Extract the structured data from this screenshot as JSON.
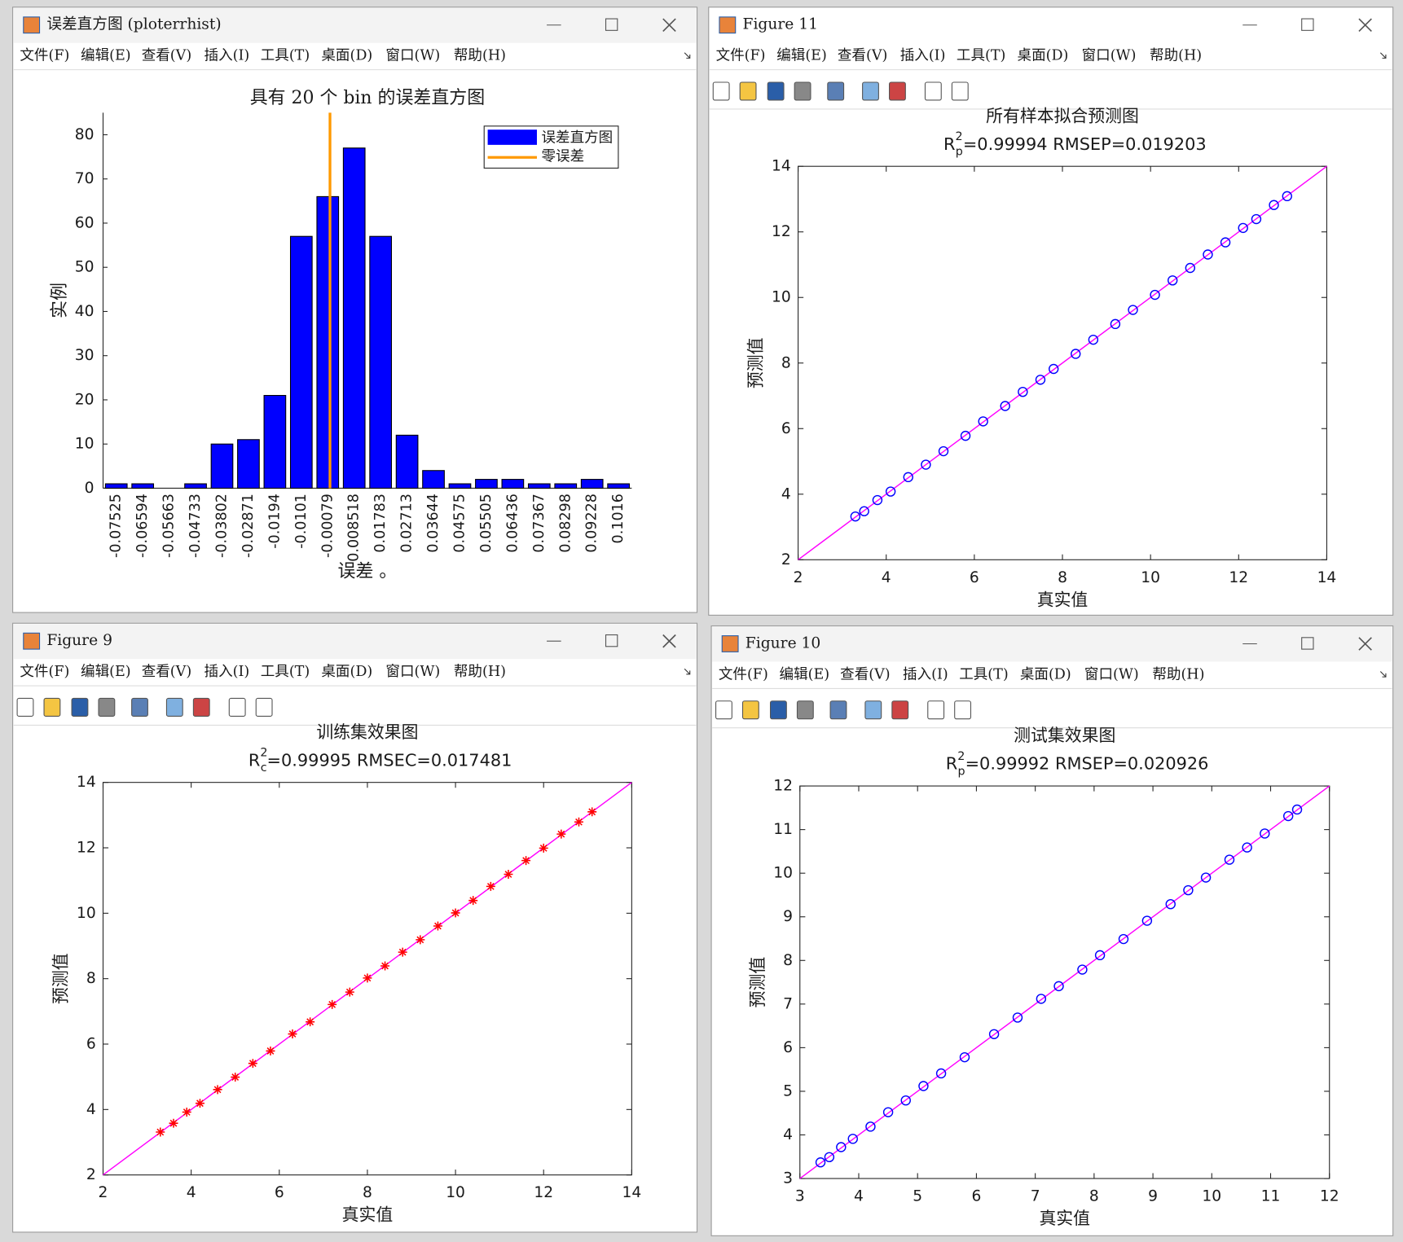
{
  "windows": [
    {
      "title": "误差直方图 (ploterrhist)"
    },
    {
      "title": "Figure 11"
    },
    {
      "title": "Figure 9"
    },
    {
      "title": "Figure 10"
    }
  ],
  "menu": [
    "文件(F)",
    "编辑(E)",
    "查看(V)",
    "插入(I)",
    "工具(T)",
    "桌面(D)",
    "窗口(W)",
    "帮助(H)"
  ],
  "chart_data": [
    {
      "type": "bar",
      "title": "具有 20 个 bin 的误差直方图",
      "xlabel": "误差 。",
      "ylabel": "实例",
      "categories": [
        "-0.07525",
        "-0.06594",
        "-0.05663",
        "-0.04733",
        "-0.03802",
        "-0.02871",
        "-0.0194",
        "-0.0101",
        "-0.00079",
        "0.008518",
        "0.01783",
        "0.02713",
        "0.03644",
        "0.04575",
        "0.05505",
        "0.06436",
        "0.07367",
        "0.08298",
        "0.09228",
        "0.1016"
      ],
      "series": [
        {
          "name": "误差直方图",
          "color": "#0000ff",
          "values": [
            1,
            1,
            0,
            1,
            10,
            11,
            21,
            57,
            66,
            77,
            57,
            12,
            4,
            1,
            2,
            2,
            1,
            1,
            2,
            1
          ]
        }
      ],
      "reference_line": {
        "name": "零误差",
        "color": "#ff9900",
        "x": 0
      },
      "ylim": [
        0,
        85
      ],
      "yticks": [
        0,
        10,
        20,
        30,
        40,
        50,
        60,
        70,
        80
      ],
      "legend": "upper right"
    },
    {
      "type": "scatter",
      "title": "所有样本拟合预测图",
      "subtitle": {
        "base": "R",
        "sup": "2",
        "sub": "p",
        "rest": "=0.99994  RMSEP=0.019203"
      },
      "xlabel": "真实值",
      "ylabel": "预测值",
      "xlim": [
        2,
        14
      ],
      "ylim": [
        2,
        14
      ],
      "xticks": [
        2,
        4,
        6,
        8,
        10,
        12,
        14
      ],
      "yticks": [
        2,
        4,
        6,
        8,
        10,
        12,
        14
      ],
      "line_color": "#ff00ff",
      "series": [
        {
          "color": "#0000ff",
          "marker": "circle",
          "x": [
            3.3,
            3.5,
            3.8,
            4.1,
            4.5,
            4.9,
            5.3,
            5.8,
            6.2,
            6.7,
            7.1,
            7.5,
            7.8,
            8.3,
            8.7,
            9.2,
            9.6,
            10.1,
            10.5,
            10.9,
            11.3,
            11.7,
            12.1,
            12.4,
            12.8,
            13.1
          ],
          "y": [
            3.32,
            3.48,
            3.82,
            4.08,
            4.52,
            4.9,
            5.31,
            5.78,
            6.22,
            6.69,
            7.12,
            7.49,
            7.82,
            8.28,
            8.71,
            9.19,
            9.62,
            10.08,
            10.52,
            10.9,
            11.31,
            11.68,
            12.12,
            12.39,
            12.82,
            13.09
          ]
        }
      ]
    },
    {
      "type": "scatter",
      "title": "训练集效果图",
      "subtitle": {
        "base": "R",
        "sup": "2",
        "sub": "c",
        "rest": "=0.99995  RMSEC=0.017481"
      },
      "xlabel": "真实值",
      "ylabel": "预测值",
      "xlim": [
        2,
        14
      ],
      "ylim": [
        2,
        14
      ],
      "xticks": [
        2,
        4,
        6,
        8,
        10,
        12,
        14
      ],
      "yticks": [
        2,
        4,
        6,
        8,
        10,
        12,
        14
      ],
      "line_color": "#ff00ff",
      "series": [
        {
          "color": "#ff0000",
          "marker": "asterisk",
          "x": [
            3.3,
            3.6,
            3.9,
            4.2,
            4.6,
            5.0,
            5.4,
            5.8,
            6.3,
            6.7,
            7.2,
            7.6,
            8.0,
            8.4,
            8.8,
            9.2,
            9.6,
            10.0,
            10.4,
            10.8,
            11.2,
            11.6,
            12.0,
            12.4,
            12.8,
            13.1
          ],
          "y": [
            3.31,
            3.58,
            3.92,
            4.19,
            4.61,
            4.99,
            5.41,
            5.79,
            6.31,
            6.68,
            7.21,
            7.59,
            8.02,
            8.39,
            8.81,
            9.19,
            9.61,
            10.01,
            10.39,
            10.82,
            11.19,
            11.61,
            11.99,
            12.42,
            12.79,
            13.1
          ]
        }
      ]
    },
    {
      "type": "scatter",
      "title": "测试集效果图",
      "subtitle": {
        "base": "R",
        "sup": "2",
        "sub": "p",
        "rest": "=0.99992  RMSEP=0.020926"
      },
      "xlabel": "真实值",
      "ylabel": "预测值",
      "xlim": [
        3,
        12
      ],
      "ylim": [
        3,
        12
      ],
      "xticks": [
        3,
        4,
        5,
        6,
        7,
        8,
        9,
        10,
        11,
        12
      ],
      "yticks": [
        3,
        4,
        5,
        6,
        7,
        8,
        9,
        10,
        11,
        12
      ],
      "line_color": "#ff00ff",
      "series": [
        {
          "color": "#0000ff",
          "marker": "circle",
          "x": [
            3.35,
            3.5,
            3.7,
            3.9,
            4.2,
            4.5,
            4.8,
            5.1,
            5.4,
            5.8,
            6.3,
            6.7,
            7.1,
            7.4,
            7.8,
            8.1,
            8.5,
            8.9,
            9.3,
            9.6,
            9.9,
            10.3,
            10.6,
            10.9,
            11.3,
            11.45
          ],
          "y": [
            3.37,
            3.49,
            3.72,
            3.91,
            4.19,
            4.52,
            4.79,
            5.12,
            5.41,
            5.78,
            6.31,
            6.69,
            7.12,
            7.41,
            7.79,
            8.12,
            8.49,
            8.91,
            9.29,
            9.61,
            9.9,
            10.31,
            10.59,
            10.91,
            11.31,
            11.46
          ]
        }
      ]
    }
  ]
}
